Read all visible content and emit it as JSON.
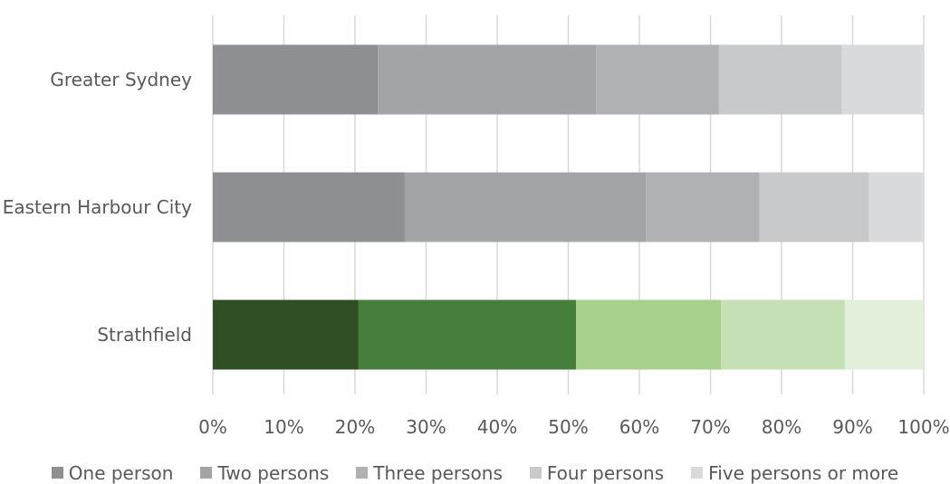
{
  "chart_data": {
    "type": "bar",
    "orientation": "horizontal",
    "stacked": "percent",
    "categories": [
      "Greater Sydney",
      "Eastern Harbour City",
      "Strathfield"
    ],
    "series": [
      {
        "name": "One person",
        "values": [
          23.2,
          27.0,
          20.5
        ]
      },
      {
        "name": "Two persons",
        "values": [
          30.7,
          33.9,
          30.6
        ]
      },
      {
        "name": "Three persons",
        "values": [
          17.3,
          16.0,
          20.4
        ]
      },
      {
        "name": "Four persons",
        "values": [
          17.3,
          15.4,
          17.4
        ]
      },
      {
        "name": "Five persons or more",
        "values": [
          11.5,
          7.7,
          11.1
        ]
      }
    ],
    "bar_colors": [
      [
        "#8e8f92",
        "#a3a4a7",
        "#b0b1b4",
        "#c8c9cb",
        "#d9dadc"
      ],
      [
        "#8e8f92",
        "#a3a4a7",
        "#b0b1b4",
        "#c8c9cb",
        "#d9dadc"
      ],
      [
        "#2e5024",
        "#467f3b",
        "#a6d08b",
        "#c5e0b4",
        "#e2efda"
      ]
    ],
    "legend_colors": [
      "#8e8f92",
      "#a3a4a7",
      "#b0b1b4",
      "#c8c9cb",
      "#d9dadc"
    ],
    "xlim": [
      0,
      100
    ],
    "xticks": [
      "0%",
      "10%",
      "20%",
      "30%",
      "40%",
      "50%",
      "60%",
      "70%",
      "80%",
      "90%",
      "100%"
    ],
    "grid": "vertical",
    "grid_color": "#d9d9d9",
    "legend_position": "bottom"
  }
}
